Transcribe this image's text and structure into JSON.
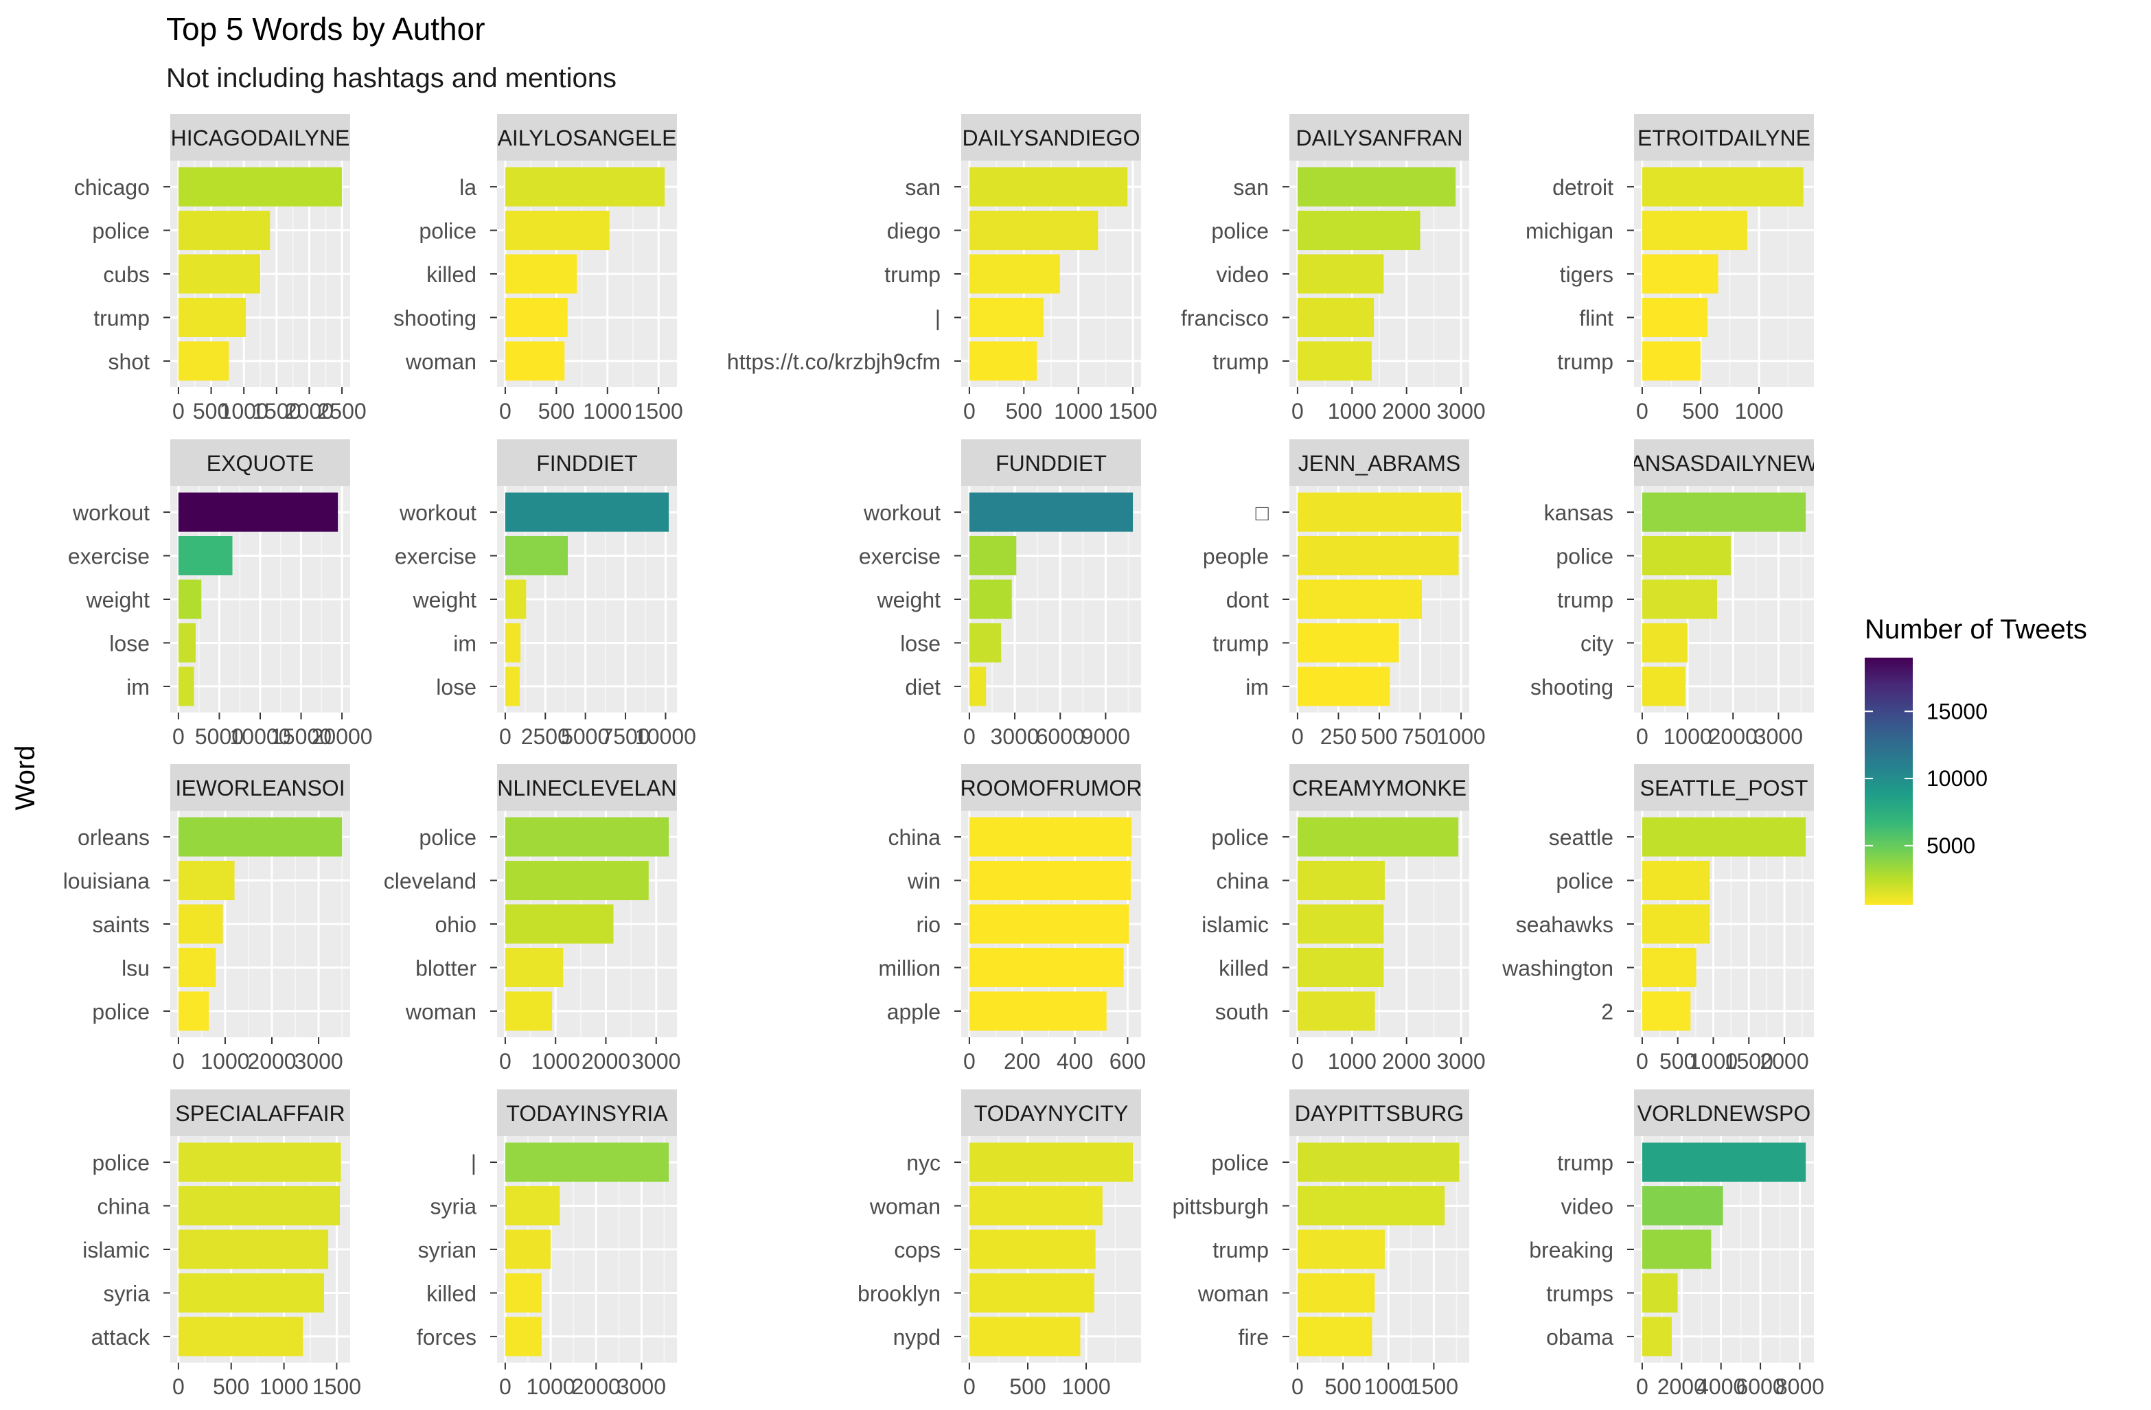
{
  "chart_data": {
    "type": "bar",
    "title": "Top 5 Words by Author",
    "subtitle": "Not including hashtags and mentions",
    "ylabel": "Word",
    "xlabel": "",
    "legend": {
      "title": "Number of Tweets",
      "position": "right",
      "ticks": [
        5000,
        10000,
        15000
      ],
      "range": [
        600,
        19000
      ],
      "colors": [
        "#fde725",
        "#b5de2b",
        "#6ece58",
        "#35b779",
        "#1f9e89",
        "#26828e",
        "#31688e",
        "#3e4989",
        "#482878",
        "#440154"
      ]
    },
    "grid": true,
    "panel_background": "#ebebeb",
    "strip_background": "#d9d9d9",
    "panels": [
      {
        "strip": "CHICAGODAILYNEWS",
        "strip_shown": "HICAGODAILYNE",
        "xmax": 2500,
        "xticks": [
          0,
          500,
          1000,
          1500,
          2000,
          2500
        ],
        "categories": [
          "chicago",
          "police",
          "cubs",
          "trump",
          "shot"
        ],
        "values": [
          2500,
          1400,
          1250,
          1030,
          770
        ]
      },
      {
        "strip": "DAILYLOSANGELES",
        "strip_shown": "AILYLOSANGELE",
        "xmax": 1600,
        "xticks": [
          0,
          500,
          1000,
          1500
        ],
        "categories": [
          "la",
          "police",
          "killed",
          "shooting",
          "woman"
        ],
        "values": [
          1560,
          1020,
          700,
          610,
          580
        ]
      },
      {
        "strip": "DAILYSANDIEGO",
        "strip_shown": "DAILYSANDIEGO",
        "xmax": 1500,
        "xticks": [
          0,
          500,
          1000,
          1500
        ],
        "categories": [
          "san",
          "diego",
          "trump",
          "|",
          "https://t.co/krzbjh9cfm"
        ],
        "values": [
          1450,
          1180,
          830,
          680,
          620
        ]
      },
      {
        "strip": "DAILYSANFRAN",
        "strip_shown": "DAILYSANFRAN",
        "xmax": 2900,
        "xticks": [
          0,
          1000,
          2000,
          3000
        ],
        "categories": [
          "san",
          "police",
          "video",
          "francisco",
          "trump"
        ],
        "values": [
          2900,
          2250,
          1580,
          1400,
          1360
        ]
      },
      {
        "strip": "DETROITDAILYNEWS",
        "strip_shown": "ETROITDAILYNE",
        "xmax": 1400,
        "xticks": [
          0,
          500,
          1000
        ],
        "categories": [
          "detroit",
          "michigan",
          "tigers",
          "flint",
          "trump"
        ],
        "values": [
          1380,
          900,
          650,
          560,
          500
        ]
      },
      {
        "strip": "EXQUOTE",
        "strip_shown": "EXQUOTE",
        "xmax": 19500,
        "xticks": [
          0,
          5000,
          10000,
          15000,
          20000
        ],
        "categories": [
          "workout",
          "exercise",
          "weight",
          "lose",
          "im"
        ],
        "values": [
          19500,
          6600,
          2800,
          2100,
          1900
        ]
      },
      {
        "strip": "FINDDIET",
        "strip_shown": "FINDDIET",
        "xmax": 10200,
        "xticks": [
          0,
          2500,
          5000,
          7500,
          10000
        ],
        "categories": [
          "workout",
          "exercise",
          "weight",
          "im",
          "lose"
        ],
        "values": [
          10200,
          3900,
          1300,
          950,
          900
        ]
      },
      {
        "strip": "FUNDDIET",
        "strip_shown": "FUNDDIET",
        "xmax": 10800,
        "xticks": [
          0,
          3000,
          6000,
          9000
        ],
        "categories": [
          "workout",
          "exercise",
          "weight",
          "lose",
          "diet"
        ],
        "values": [
          10800,
          3100,
          2800,
          2100,
          1100
        ]
      },
      {
        "strip": "JENN_ABRAMS",
        "strip_shown": "JENN_ABRAMS",
        "xmax": 1000,
        "xticks": [
          0,
          250,
          500,
          750,
          1000
        ],
        "categories": [
          "□",
          "people",
          "dont",
          "trump",
          "im"
        ],
        "values": [
          1000,
          985,
          760,
          620,
          565
        ]
      },
      {
        "strip": "KANSASDAILYNEWS",
        "strip_shown": "ANSASDAILYNEW",
        "xmax": 3600,
        "xticks": [
          0,
          1000,
          2000,
          3000
        ],
        "categories": [
          "kansas",
          "police",
          "trump",
          "city",
          "shooting"
        ],
        "values": [
          3600,
          1950,
          1650,
          1000,
          950
        ]
      },
      {
        "strip": "NEWORLEANSON",
        "strip_shown": "IEWORLEANSOI",
        "xmax": 3500,
        "xticks": [
          0,
          1000,
          2000,
          3000
        ],
        "categories": [
          "orleans",
          "louisiana",
          "saints",
          "lsu",
          "police"
        ],
        "values": [
          3500,
          1200,
          950,
          800,
          650
        ]
      },
      {
        "strip": "ONLINECLEVELAND",
        "strip_shown": "NLINECLEVELAN",
        "xmax": 3250,
        "xticks": [
          0,
          1000,
          2000,
          3000
        ],
        "categories": [
          "police",
          "cleveland",
          "ohio",
          "blotter",
          "woman"
        ],
        "values": [
          3250,
          2850,
          2150,
          1150,
          930
        ]
      },
      {
        "strip": "ROOMOFRUMOR",
        "strip_shown": "ROOMOFRUMOR",
        "xmax": 620,
        "xticks": [
          0,
          200,
          400,
          600
        ],
        "categories": [
          "china",
          "win",
          "rio",
          "million",
          "apple"
        ],
        "values": [
          615,
          612,
          605,
          585,
          520
        ]
      },
      {
        "strip": "SCREAMYMONKEY",
        "strip_shown": "CREAMYMONKE",
        "xmax": 3000,
        "xticks": [
          0,
          1000,
          2000,
          3000
        ],
        "categories": [
          "police",
          "china",
          "islamic",
          "killed",
          "south"
        ],
        "values": [
          2950,
          1600,
          1580,
          1580,
          1420
        ]
      },
      {
        "strip": "SEATTLE_POST",
        "strip_shown": "SEATTLE_POST",
        "xmax": 2300,
        "xticks": [
          0,
          500,
          1000,
          1500,
          2000
        ],
        "categories": [
          "seattle",
          "police",
          "seahawks",
          "washington",
          "2"
        ],
        "values": [
          2300,
          950,
          950,
          760,
          680
        ]
      },
      {
        "strip": "SPECIALAFFAIR",
        "strip_shown": "SPECIALAFFAIR",
        "xmax": 1550,
        "xticks": [
          0,
          500,
          1000,
          1500
        ],
        "categories": [
          "police",
          "china",
          "islamic",
          "syria",
          "attack"
        ],
        "values": [
          1540,
          1530,
          1420,
          1380,
          1180
        ]
      },
      {
        "strip": "TODAYINSYRIA",
        "strip_shown": "TODAYINSYRIA",
        "xmax": 3600,
        "xticks": [
          0,
          1000,
          2000,
          3000
        ],
        "categories": [
          "|",
          "syria",
          "syrian",
          "killed",
          "forces"
        ],
        "values": [
          3600,
          1200,
          1000,
          800,
          800
        ]
      },
      {
        "strip": "TODAYNYCITY",
        "strip_shown": "TODAYNYCITY",
        "xmax": 1400,
        "xticks": [
          0,
          500,
          1000
        ],
        "categories": [
          "nyc",
          "woman",
          "cops",
          "brooklyn",
          "nypd"
        ],
        "values": [
          1400,
          1140,
          1080,
          1070,
          950
        ]
      },
      {
        "strip": "TODAYPITTSBURGH",
        "strip_shown": "DAYPITTSBURG",
        "xmax": 1800,
        "xticks": [
          0,
          500,
          1000,
          1500
        ],
        "categories": [
          "police",
          "pittsburgh",
          "trump",
          "woman",
          "fire"
        ],
        "values": [
          1780,
          1620,
          960,
          850,
          820
        ]
      },
      {
        "strip": "WORLDNEWSPOLITICS",
        "strip_shown": "VORLDNEWSPO",
        "xmax": 8300,
        "xticks": [
          0,
          2000,
          4000,
          6000,
          8000
        ],
        "categories": [
          "trump",
          "video",
          "breaking",
          "trumps",
          "obama"
        ],
        "values": [
          8300,
          4100,
          3500,
          1800,
          1500
        ]
      }
    ]
  }
}
